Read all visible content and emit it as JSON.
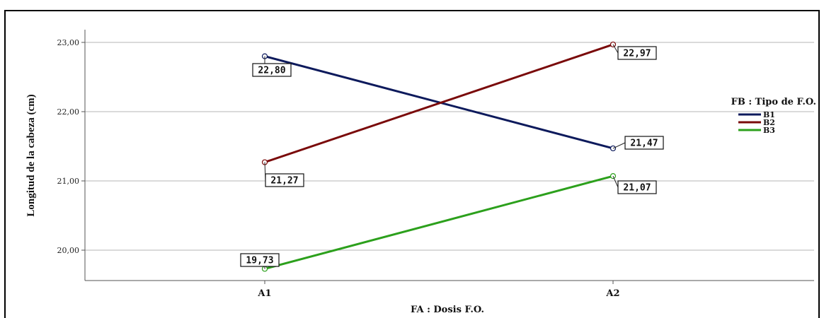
{
  "chart_data": {
    "type": "line",
    "xlabel": "FA : Dosis F.O.",
    "ylabel": "Longitud de la cabeza (cm)",
    "categories": [
      "A1",
      "A2"
    ],
    "ylim": [
      19.55,
      23.15
    ],
    "yticks": [
      "20,00",
      "21,00",
      "22,00",
      "23,00"
    ],
    "ytick_values": [
      20,
      21,
      22,
      23
    ],
    "grid": true,
    "legend": {
      "title": "FB : Tipo de F.O.",
      "position": "right"
    },
    "series": [
      {
        "name": "B1",
        "values": [
          22.8,
          21.47
        ],
        "labels": [
          "22,80",
          "21,47"
        ],
        "color": "#0d1a5c"
      },
      {
        "name": "B2",
        "values": [
          21.27,
          22.97
        ],
        "labels": [
          "21,27",
          "22,97"
        ],
        "color": "#7a0a0a"
      },
      {
        "name": "B3",
        "values": [
          19.73,
          21.07
        ],
        "labels": [
          "19,73",
          "21,07"
        ],
        "color": "#2ca01c"
      }
    ]
  }
}
